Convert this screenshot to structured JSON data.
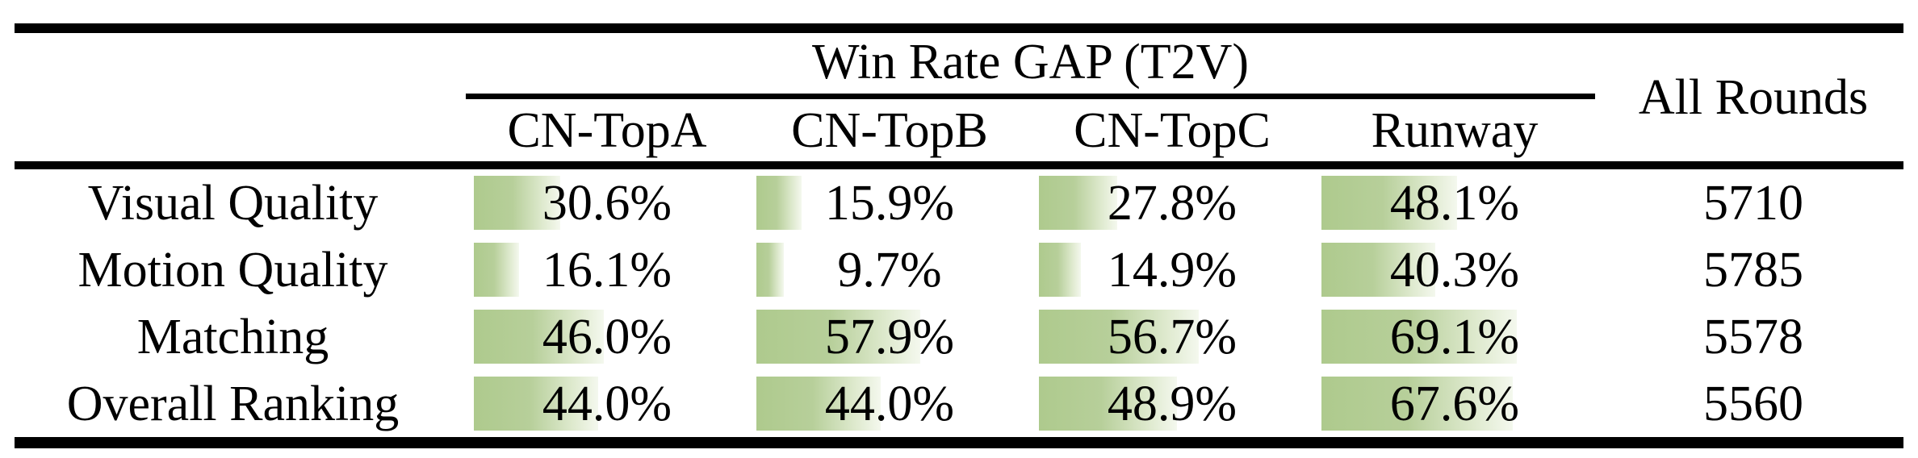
{
  "colors": {
    "bar_green": "#aeca8d",
    "bar_fade": "#f4f8ee",
    "rule_black": "#000000",
    "background": "#ffffff"
  },
  "table": {
    "group_header": "Win Rate GAP (T2V)",
    "all_rounds_header": "All Rounds",
    "columns": [
      "CN-TopA",
      "CN-TopB",
      "CN-TopC",
      "Runway"
    ],
    "rows": [
      {
        "label": "Visual Quality",
        "cells": [
          {
            "pct": 30.6,
            "label": "30.6%"
          },
          {
            "pct": 15.9,
            "label": "15.9%"
          },
          {
            "pct": 27.8,
            "label": "27.8%"
          },
          {
            "pct": 48.1,
            "label": "48.1%"
          }
        ],
        "all_rounds": "5710"
      },
      {
        "label": "Motion Quality",
        "cells": [
          {
            "pct": 16.1,
            "label": "16.1%"
          },
          {
            "pct": 9.7,
            "label": "9.7%"
          },
          {
            "pct": 14.9,
            "label": "14.9%"
          },
          {
            "pct": 40.3,
            "label": "40.3%"
          }
        ],
        "all_rounds": "5785"
      },
      {
        "label": "Matching",
        "cells": [
          {
            "pct": 46.0,
            "label": "46.0%"
          },
          {
            "pct": 57.9,
            "label": "57.9%"
          },
          {
            "pct": 56.7,
            "label": "56.7%"
          },
          {
            "pct": 69.1,
            "label": "69.1%"
          }
        ],
        "all_rounds": "5578"
      },
      {
        "label": "Overall Ranking",
        "cells": [
          {
            "pct": 44.0,
            "label": "44.0%"
          },
          {
            "pct": 44.0,
            "label": "44.0%"
          },
          {
            "pct": 48.9,
            "label": "48.9%"
          },
          {
            "pct": 67.6,
            "label": "67.6%"
          }
        ],
        "all_rounds": "5560"
      }
    ]
  },
  "chart_data": {
    "type": "table",
    "title": "Win Rate GAP (T2V)",
    "categories": [
      "Visual Quality",
      "Motion Quality",
      "Matching",
      "Overall Ranking"
    ],
    "series": [
      {
        "name": "CN-TopA",
        "values": [
          30.6,
          16.1,
          46.0,
          44.0
        ]
      },
      {
        "name": "CN-TopB",
        "values": [
          15.9,
          9.7,
          57.9,
          44.0
        ]
      },
      {
        "name": "CN-TopC",
        "values": [
          27.8,
          14.9,
          56.7,
          48.9
        ]
      },
      {
        "name": "Runway",
        "values": [
          48.1,
          40.3,
          69.1,
          67.6
        ]
      },
      {
        "name": "All Rounds",
        "values": [
          5710,
          5785,
          5578,
          5560
        ]
      }
    ],
    "units": "percent (win rate gap); All Rounds column is round counts",
    "layout": "in-cell left-aligned green gradient bars, width proportional to percent of column width"
  }
}
